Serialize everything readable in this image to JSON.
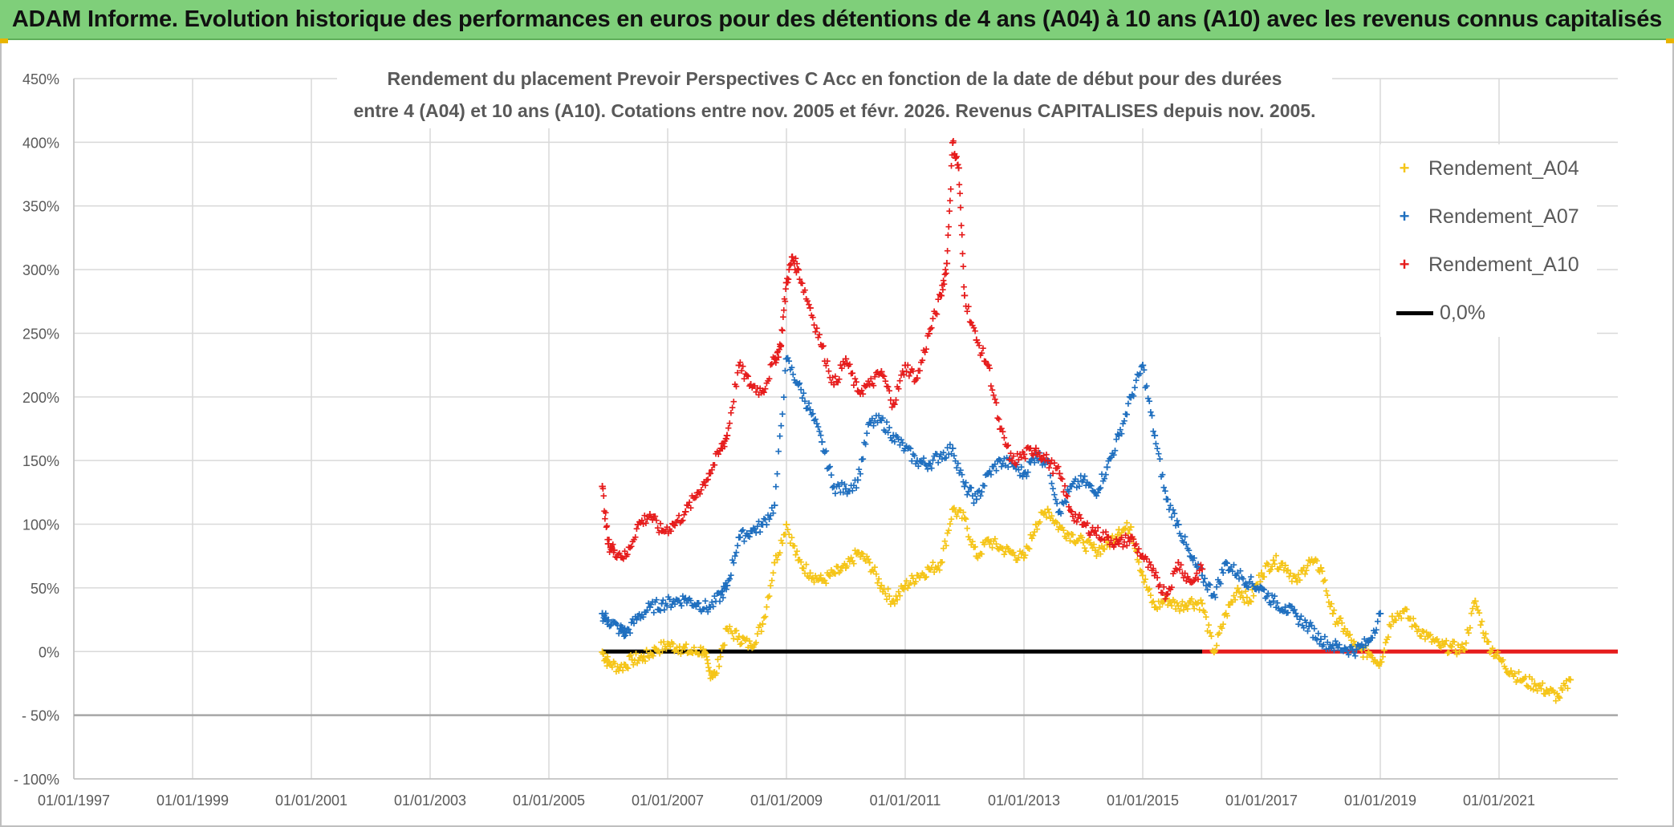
{
  "banner": {
    "title": "ADAM Informe. Evolution historique des performances en euros pour des détentions de 4 ans (A04) à 10 ans (A10) avec les revenus connus capitalisés"
  },
  "colors": {
    "banner_bg": "#7fcf7a",
    "A04": "#f5c518",
    "A07": "#1f6fbf",
    "A10": "#e61c1c",
    "zero": "#000000"
  },
  "chart_data": {
    "type": "scatter",
    "title_line1": "Rendement du placement Prevoir Perspectives C Acc en fonction de la date de début pour des durées",
    "title_line2": "entre 4 (A04) et 10 ans (A10). Cotations entre nov. 2005 et févr. 2026. Revenus CAPITALISES depuis nov. 2005.",
    "xlim": [
      1997.0,
      2023.0
    ],
    "ylim": [
      -100,
      450
    ],
    "x_ticks": [
      {
        "label": "01/01/1997",
        "value": 1997
      },
      {
        "label": "01/01/1999",
        "value": 1999
      },
      {
        "label": "01/01/2001",
        "value": 2001
      },
      {
        "label": "01/01/2003",
        "value": 2003
      },
      {
        "label": "01/01/2005",
        "value": 2005
      },
      {
        "label": "01/01/2007",
        "value": 2007
      },
      {
        "label": "01/01/2009",
        "value": 2009
      },
      {
        "label": "01/01/2011",
        "value": 2011
      },
      {
        "label": "01/01/2013",
        "value": 2013
      },
      {
        "label": "01/01/2015",
        "value": 2015
      },
      {
        "label": "01/01/2017",
        "value": 2017
      },
      {
        "label": "01/01/2019",
        "value": 2019
      },
      {
        "label": "01/01/2021",
        "value": 2021
      }
    ],
    "y_ticks": [
      {
        "label": "450%",
        "value": 450
      },
      {
        "label": "400%",
        "value": 400
      },
      {
        "label": "350%",
        "value": 350
      },
      {
        "label": "300%",
        "value": 300
      },
      {
        "label": "250%",
        "value": 250
      },
      {
        "label": "200%",
        "value": 200
      },
      {
        "label": "150%",
        "value": 150
      },
      {
        "label": "100%",
        "value": 100
      },
      {
        "label": "50%",
        "value": 50
      },
      {
        "label": "0%",
        "value": 0
      },
      {
        "label": "- 50%",
        "value": -50
      },
      {
        "label": "- 100%",
        "value": -100
      }
    ],
    "legend": [
      {
        "label": "Rendement_A04",
        "key": "A04",
        "symbol": "+"
      },
      {
        "label": "Rendement_A07",
        "key": "A07",
        "symbol": "+"
      },
      {
        "label": "Rendement_A10",
        "key": "A10",
        "symbol": "+"
      },
      {
        "label": "0,0%",
        "key": "zero",
        "symbol": "line"
      }
    ],
    "series": [
      {
        "name": "Rendement_A04",
        "key": "A04",
        "x": [
          2005.9,
          2006.0,
          2006.2,
          2006.4,
          2006.6,
          2006.8,
          2007.0,
          2007.2,
          2007.4,
          2007.6,
          2007.7,
          2007.8,
          2008.0,
          2008.2,
          2008.4,
          2008.6,
          2008.8,
          2009.0,
          2009.2,
          2009.4,
          2009.6,
          2009.8,
          2010.0,
          2010.2,
          2010.4,
          2010.6,
          2010.8,
          2011.0,
          2011.2,
          2011.4,
          2011.6,
          2011.8,
          2012.0,
          2012.2,
          2012.4,
          2012.6,
          2012.8,
          2013.0,
          2013.2,
          2013.4,
          2013.6,
          2013.8,
          2014.0,
          2014.2,
          2014.4,
          2014.6,
          2014.8,
          2015.0,
          2015.2,
          2015.4,
          2015.6,
          2015.8,
          2016.0,
          2016.2,
          2016.4,
          2016.6,
          2016.8,
          2017.0,
          2017.2,
          2017.4,
          2017.6,
          2017.8,
          2018.0,
          2018.2,
          2018.4,
          2018.6,
          2018.8,
          2019.0,
          2019.2,
          2019.4,
          2019.6,
          2019.8,
          2020.0,
          2020.2,
          2020.4,
          2020.6,
          2020.8,
          2021.0,
          2021.2,
          2021.4,
          2021.6,
          2021.8,
          2022.0,
          2022.2
        ],
        "y": [
          0,
          -8,
          -12,
          -6,
          -4,
          2,
          6,
          4,
          0,
          2,
          -15,
          -18,
          18,
          12,
          5,
          22,
          70,
          100,
          72,
          62,
          56,
          62,
          66,
          78,
          70,
          52,
          40,
          52,
          60,
          65,
          70,
          112,
          105,
          75,
          88,
          82,
          78,
          74,
          100,
          112,
          98,
          92,
          86,
          80,
          84,
          96,
          98,
          60,
          35,
          42,
          36,
          40,
          38,
          0,
          30,
          50,
          40,
          62,
          72,
          68,
          55,
          72,
          66,
          30,
          18,
          2,
          0,
          -8,
          28,
          32,
          20,
          12,
          5,
          4,
          2,
          40,
          8,
          -5,
          -15,
          -22,
          -25,
          -30,
          -35,
          -22
        ]
      },
      {
        "name": "Rendement_A07",
        "key": "A07",
        "x": [
          2005.9,
          2006.0,
          2006.2,
          2006.3,
          2006.5,
          2006.7,
          2006.9,
          2007.1,
          2007.3,
          2007.5,
          2007.7,
          2007.9,
          2008.0,
          2008.2,
          2008.4,
          2008.6,
          2008.8,
          2009.0,
          2009.2,
          2009.4,
          2009.6,
          2009.8,
          2010.0,
          2010.2,
          2010.4,
          2010.6,
          2010.8,
          2011.0,
          2011.2,
          2011.4,
          2011.6,
          2011.8,
          2012.0,
          2012.2,
          2012.4,
          2012.6,
          2012.8,
          2013.0,
          2013.2,
          2013.4,
          2013.6,
          2013.8,
          2014.0,
          2014.2,
          2014.4,
          2014.6,
          2014.8,
          2015.0,
          2015.2,
          2015.4,
          2015.6,
          2015.8,
          2016.0,
          2016.2,
          2016.4,
          2016.6,
          2016.8,
          2017.0,
          2017.2,
          2017.4,
          2017.6,
          2017.8,
          2018.0,
          2018.2,
          2018.4,
          2018.6,
          2018.8,
          2019.0
        ],
        "y": [
          30,
          25,
          18,
          15,
          28,
          35,
          38,
          40,
          42,
          38,
          35,
          45,
          52,
          90,
          95,
          100,
          115,
          230,
          210,
          190,
          165,
          130,
          128,
          135,
          180,
          182,
          170,
          160,
          150,
          148,
          155,
          160,
          130,
          120,
          140,
          150,
          148,
          140,
          155,
          150,
          110,
          130,
          135,
          125,
          145,
          170,
          200,
          225,
          170,
          120,
          100,
          75,
          60,
          45,
          70,
          62,
          55,
          50,
          40,
          35,
          28,
          20,
          10,
          5,
          3,
          2,
          8,
          30
        ]
      },
      {
        "name": "Rendement_A10",
        "key": "A10",
        "x": [
          2005.9,
          2006.0,
          2006.1,
          2006.3,
          2006.5,
          2006.7,
          2006.9,
          2007.1,
          2007.3,
          2007.5,
          2007.7,
          2007.9,
          2008.0,
          2008.2,
          2008.4,
          2008.6,
          2008.8,
          2008.9,
          2009.0,
          2009.1,
          2009.2,
          2009.4,
          2009.6,
          2009.8,
          2010.0,
          2010.2,
          2010.4,
          2010.6,
          2010.8,
          2011.0,
          2011.2,
          2011.4,
          2011.6,
          2011.7,
          2011.8,
          2011.9,
          2012.0,
          2012.2,
          2012.4,
          2012.6,
          2012.8,
          2013.0,
          2013.2,
          2013.4,
          2013.6,
          2013.8,
          2014.0,
          2014.2,
          2014.4,
          2014.6,
          2014.8,
          2015.0,
          2015.2,
          2015.4,
          2015.6,
          2015.8,
          2016.0
        ],
        "y": [
          130,
          85,
          80,
          75,
          100,
          108,
          95,
          100,
          110,
          125,
          140,
          160,
          170,
          225,
          210,
          205,
          230,
          240,
          290,
          310,
          300,
          270,
          240,
          210,
          230,
          205,
          210,
          220,
          195,
          225,
          215,
          250,
          280,
          305,
          400,
          380,
          280,
          245,
          225,
          175,
          150,
          155,
          160,
          150,
          140,
          110,
          100,
          95,
          90,
          85,
          90,
          75,
          60,
          45,
          70,
          55,
          65
        ]
      }
    ],
    "zero_line_segments": [
      {
        "x0": 2005.9,
        "x1": 2016.0,
        "color": "#000000"
      },
      {
        "x0": 2016.0,
        "x1": 2023.0,
        "color": "#e61c1c"
      }
    ]
  }
}
